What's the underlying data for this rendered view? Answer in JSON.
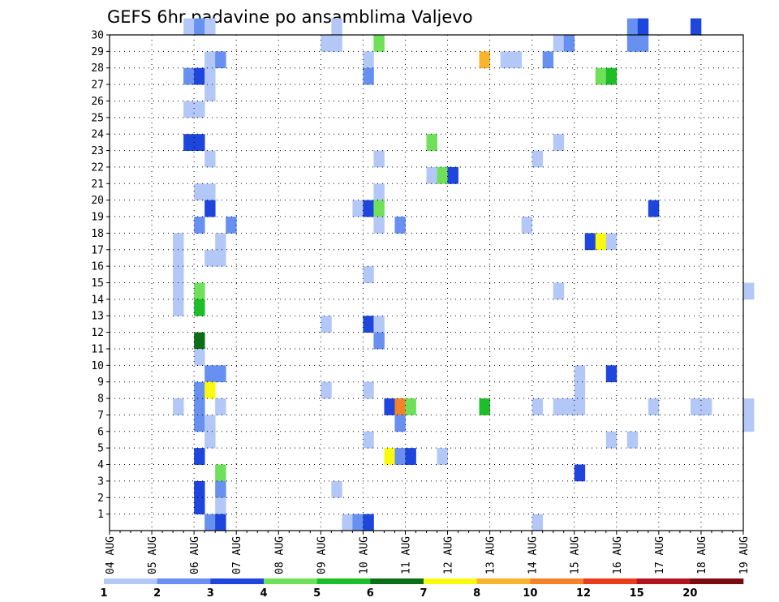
{
  "chart_data": {
    "type": "heatmap",
    "title": "GEFS 6hr padavine po ansamblima Valjevo",
    "xlabel": "",
    "ylabel": "",
    "x_tick_labels": [
      "04 AUG",
      "05 AUG",
      "06 AUG",
      "07 AUG",
      "08 AUG",
      "09 AUG",
      "10 AUG",
      "11 AUG",
      "12 AUG",
      "13 AUG",
      "14 AUG",
      "15 AUG",
      "16 AUG",
      "17 AUG",
      "18 AUG",
      "19 AUG"
    ],
    "y_tick_labels": [
      "1",
      "2",
      "3",
      "4",
      "5",
      "6",
      "7",
      "8",
      "9",
      "10",
      "11",
      "12",
      "13",
      "14",
      "15",
      "16",
      "17",
      "18",
      "19",
      "20",
      "21",
      "22",
      "23",
      "24",
      "25",
      "26",
      "27",
      "28",
      "29",
      "30"
    ],
    "colorbar_labels": [
      "1",
      "2",
      "3",
      "4",
      "5",
      "6",
      "7",
      "8",
      "10",
      "12",
      "15",
      "20"
    ],
    "colorbar_colors": [
      "#b4c8f8",
      "#6890f0",
      "#1e46dc",
      "#6ee05a",
      "#1ebe2a",
      "#0c6e18",
      "#fafa10",
      "#f8b42c",
      "#f48228",
      "#e83c1c",
      "#b4141e",
      "#7a0c10"
    ],
    "ylim": [
      0,
      30
    ],
    "grid": true,
    "cells": [
      {
        "member": 30,
        "time": "05 AUG 18Z",
        "level": 1
      },
      {
        "member": 30,
        "time": "06 AUG 00Z",
        "level": 2
      },
      {
        "member": 30,
        "time": "06 AUG 06Z",
        "level": 1
      },
      {
        "member": 30,
        "time": "09 AUG 06Z",
        "level": 1
      },
      {
        "member": 30,
        "time": "16 AUG 06Z",
        "level": 2
      },
      {
        "member": 30,
        "time": "16 AUG 12Z",
        "level": 3
      },
      {
        "member": 30,
        "time": "17 AUG 18Z",
        "level": 3
      },
      {
        "member": 29,
        "time": "09 AUG 00Z",
        "level": 1
      },
      {
        "member": 29,
        "time": "09 AUG 06Z",
        "level": 1
      },
      {
        "member": 29,
        "time": "10 AUG 06Z",
        "level": 4
      },
      {
        "member": 29,
        "time": "14 AUG 12Z",
        "level": 1
      },
      {
        "member": 29,
        "time": "14 AUG 18Z",
        "level": 2
      },
      {
        "member": 29,
        "time": "16 AUG 06Z",
        "level": 2
      },
      {
        "member": 29,
        "time": "16 AUG 12Z",
        "level": 2
      },
      {
        "member": 28,
        "time": "06 AUG 06Z",
        "level": 1
      },
      {
        "member": 28,
        "time": "06 AUG 12Z",
        "level": 2
      },
      {
        "member": 28,
        "time": "10 AUG 00Z",
        "level": 1
      },
      {
        "member": 28,
        "time": "12 AUG 18Z",
        "level": 8
      },
      {
        "member": 28,
        "time": "13 AUG 06Z",
        "level": 1
      },
      {
        "member": 28,
        "time": "13 AUG 12Z",
        "level": 1
      },
      {
        "member": 28,
        "time": "14 AUG 06Z",
        "level": 2
      },
      {
        "member": 27,
        "time": "05 AUG 18Z",
        "level": 2
      },
      {
        "member": 27,
        "time": "06 AUG 00Z",
        "level": 3
      },
      {
        "member": 27,
        "time": "06 AUG 06Z",
        "level": 1
      },
      {
        "member": 27,
        "time": "10 AUG 00Z",
        "level": 2
      },
      {
        "member": 27,
        "time": "15 AUG 12Z",
        "level": 4
      },
      {
        "member": 27,
        "time": "15 AUG 18Z",
        "level": 5
      },
      {
        "member": 26,
        "time": "06 AUG 06Z",
        "level": 1
      },
      {
        "member": 25,
        "time": "05 AUG 18Z",
        "level": 1
      },
      {
        "member": 25,
        "time": "06 AUG 00Z",
        "level": 1
      },
      {
        "member": 23,
        "time": "05 AUG 18Z",
        "level": 3
      },
      {
        "member": 23,
        "time": "06 AUG 00Z",
        "level": 3
      },
      {
        "member": 23,
        "time": "11 AUG 12Z",
        "level": 4
      },
      {
        "member": 23,
        "time": "14 AUG 12Z",
        "level": 1
      },
      {
        "member": 22,
        "time": "06 AUG 06Z",
        "level": 1
      },
      {
        "member": 22,
        "time": "10 AUG 06Z",
        "level": 1
      },
      {
        "member": 22,
        "time": "14 AUG 00Z",
        "level": 1
      },
      {
        "member": 21,
        "time": "11 AUG 12Z",
        "level": 1
      },
      {
        "member": 21,
        "time": "11 AUG 18Z",
        "level": 4
      },
      {
        "member": 21,
        "time": "12 AUG 00Z",
        "level": 3
      },
      {
        "member": 20,
        "time": "06 AUG 00Z",
        "level": 1
      },
      {
        "member": 20,
        "time": "06 AUG 06Z",
        "level": 1
      },
      {
        "member": 20,
        "time": "10 AUG 06Z",
        "level": 1
      },
      {
        "member": 19,
        "time": "06 AUG 06Z",
        "level": 3
      },
      {
        "member": 19,
        "time": "09 AUG 18Z",
        "level": 1
      },
      {
        "member": 19,
        "time": "10 AUG 00Z",
        "level": 3
      },
      {
        "member": 19,
        "time": "10 AUG 06Z",
        "level": 4
      },
      {
        "member": 19,
        "time": "16 AUG 18Z",
        "level": 3
      },
      {
        "member": 18,
        "time": "06 AUG 00Z",
        "level": 2
      },
      {
        "member": 18,
        "time": "06 AUG 18Z",
        "level": 2
      },
      {
        "member": 18,
        "time": "10 AUG 06Z",
        "level": 1
      },
      {
        "member": 18,
        "time": "10 AUG 18Z",
        "level": 2
      },
      {
        "member": 18,
        "time": "13 AUG 18Z",
        "level": 1
      },
      {
        "member": 17,
        "time": "05 AUG 12Z",
        "level": 1
      },
      {
        "member": 17,
        "time": "06 AUG 12Z",
        "level": 1
      },
      {
        "member": 17,
        "time": "15 AUG 06Z",
        "level": 3
      },
      {
        "member": 17,
        "time": "15 AUG 12Z",
        "level": 7
      },
      {
        "member": 17,
        "time": "15 AUG 18Z",
        "level": 1
      },
      {
        "member": 16,
        "time": "05 AUG 12Z",
        "level": 1
      },
      {
        "member": 16,
        "time": "06 AUG 06Z",
        "level": 1
      },
      {
        "member": 16,
        "time": "06 AUG 12Z",
        "level": 1
      },
      {
        "member": 15,
        "time": "05 AUG 12Z",
        "level": 1
      },
      {
        "member": 15,
        "time": "10 AUG 00Z",
        "level": 1
      },
      {
        "member": 14,
        "time": "05 AUG 12Z",
        "level": 1
      },
      {
        "member": 14,
        "time": "06 AUG 00Z",
        "level": 4
      },
      {
        "member": 14,
        "time": "14 AUG 12Z",
        "level": 1
      },
      {
        "member": 14,
        "time": "19 AUG 00Z",
        "level": 1
      },
      {
        "member": 13,
        "time": "05 AUG 12Z",
        "level": 1
      },
      {
        "member": 13,
        "time": "06 AUG 00Z",
        "level": 5
      },
      {
        "member": 12,
        "time": "09 AUG 00Z",
        "level": 1
      },
      {
        "member": 12,
        "time": "10 AUG 00Z",
        "level": 3
      },
      {
        "member": 12,
        "time": "10 AUG 06Z",
        "level": 1
      },
      {
        "member": 11,
        "time": "06 AUG 00Z",
        "level": 6
      },
      {
        "member": 11,
        "time": "10 AUG 06Z",
        "level": 2
      },
      {
        "member": 10,
        "time": "06 AUG 00Z",
        "level": 1
      },
      {
        "member": 9,
        "time": "06 AUG 06Z",
        "level": 2
      },
      {
        "member": 9,
        "time": "06 AUG 12Z",
        "level": 2
      },
      {
        "member": 9,
        "time": "15 AUG 00Z",
        "level": 1
      },
      {
        "member": 9,
        "time": "15 AUG 18Z",
        "level": 3
      },
      {
        "member": 8,
        "time": "06 AUG 00Z",
        "level": 2
      },
      {
        "member": 8,
        "time": "06 AUG 06Z",
        "level": 7
      },
      {
        "member": 8,
        "time": "09 AUG 00Z",
        "level": 1
      },
      {
        "member": 8,
        "time": "10 AUG 00Z",
        "level": 1
      },
      {
        "member": 8,
        "time": "15 AUG 00Z",
        "level": 1
      },
      {
        "member": 7,
        "time": "05 AUG 12Z",
        "level": 1
      },
      {
        "member": 7,
        "time": "06 AUG 00Z",
        "level": 2
      },
      {
        "member": 7,
        "time": "06 AUG 12Z",
        "level": 1
      },
      {
        "member": 7,
        "time": "10 AUG 12Z",
        "level": 3
      },
      {
        "member": 7,
        "time": "10 AUG 18Z",
        "level": 9
      },
      {
        "member": 7,
        "time": "11 AUG 00Z",
        "level": 4
      },
      {
        "member": 7,
        "time": "12 AUG 18Z",
        "level": 5
      },
      {
        "member": 7,
        "time": "14 AUG 00Z",
        "level": 1
      },
      {
        "member": 7,
        "time": "14 AUG 12Z",
        "level": 1
      },
      {
        "member": 7,
        "time": "14 AUG 18Z",
        "level": 1
      },
      {
        "member": 7,
        "time": "15 AUG 00Z",
        "level": 1
      },
      {
        "member": 7,
        "time": "16 AUG 18Z",
        "level": 1
      },
      {
        "member": 7,
        "time": "17 AUG 18Z",
        "level": 1
      },
      {
        "member": 7,
        "time": "18 AUG 00Z",
        "level": 1
      },
      {
        "member": 7,
        "time": "19 AUG 00Z",
        "level": 1
      },
      {
        "member": 6,
        "time": "06 AUG 00Z",
        "level": 2
      },
      {
        "member": 6,
        "time": "06 AUG 06Z",
        "level": 1
      },
      {
        "member": 6,
        "time": "10 AUG 18Z",
        "level": 2
      },
      {
        "member": 6,
        "time": "19 AUG 00Z",
        "level": 1
      },
      {
        "member": 5,
        "time": "06 AUG 06Z",
        "level": 1
      },
      {
        "member": 5,
        "time": "10 AUG 00Z",
        "level": 1
      },
      {
        "member": 5,
        "time": "15 AUG 18Z",
        "level": 1
      },
      {
        "member": 5,
        "time": "16 AUG 06Z",
        "level": 1
      },
      {
        "member": 4,
        "time": "06 AUG 00Z",
        "level": 3
      },
      {
        "member": 4,
        "time": "10 AUG 12Z",
        "level": 7
      },
      {
        "member": 4,
        "time": "10 AUG 18Z",
        "level": 2
      },
      {
        "member": 4,
        "time": "11 AUG 00Z",
        "level": 3
      },
      {
        "member": 4,
        "time": "11 AUG 18Z",
        "level": 1
      },
      {
        "member": 3,
        "time": "06 AUG 12Z",
        "level": 4
      },
      {
        "member": 3,
        "time": "15 AUG 00Z",
        "level": 3
      },
      {
        "member": 2,
        "time": "06 AUG 00Z",
        "level": 3
      },
      {
        "member": 2,
        "time": "06 AUG 12Z",
        "level": 2
      },
      {
        "member": 2,
        "time": "09 AUG 06Z",
        "level": 1
      },
      {
        "member": 1,
        "time": "06 AUG 00Z",
        "level": 3
      },
      {
        "member": 1,
        "time": "06 AUG 12Z",
        "level": 1
      },
      {
        "member": 0,
        "time": "06 AUG 06Z",
        "level": 2
      },
      {
        "member": 0,
        "time": "06 AUG 12Z",
        "level": 3
      },
      {
        "member": 0,
        "time": "09 AUG 12Z",
        "level": 1
      },
      {
        "member": 0,
        "time": "09 AUG 18Z",
        "level": 2
      },
      {
        "member": 0,
        "time": "10 AUG 00Z",
        "level": 3
      },
      {
        "member": 0,
        "time": "14 AUG 00Z",
        "level": 1
      }
    ]
  }
}
